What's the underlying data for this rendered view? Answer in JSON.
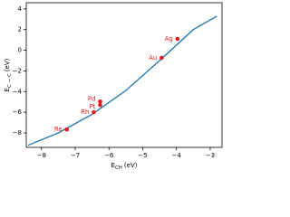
{
  "chart_data": {
    "type": "scatter",
    "xlabel": {
      "main": "E",
      "sub": "CH",
      "unit": "(eV)"
    },
    "ylabel": {
      "main": "E",
      "sub": "C − C",
      "unit": "(eV)"
    },
    "xlim": [
      -8.45,
      -2.65
    ],
    "xticks": [
      {
        "value": -8,
        "label": "−8"
      },
      {
        "value": -7,
        "label": "−7"
      },
      {
        "value": -6,
        "label": "−6"
      },
      {
        "value": -5,
        "label": "−5"
      },
      {
        "value": -4,
        "label": "−4"
      },
      {
        "value": -3,
        "label": "−3"
      }
    ],
    "ylim": [
      -9.4,
      4.6
    ],
    "yticks": [
      {
        "value": -8,
        "label": "−8"
      },
      {
        "value": -6,
        "label": "−6"
      },
      {
        "value": -4,
        "label": "−4"
      },
      {
        "value": -2,
        "label": "−2"
      },
      0,
      2,
      4
    ],
    "points": {
      "color": "#e31a1c",
      "labels": [
        "Ag",
        "Au",
        "Pd",
        "Pt",
        "Rh",
        "Re"
      ],
      "x": [
        -3.97,
        -4.44,
        -6.26,
        -6.26,
        -6.45,
        -7.25
      ],
      "values": [
        1.1,
        -0.74,
        -4.96,
        -5.3,
        -6.0,
        -7.67
      ]
    },
    "fit": {
      "color": "#1f77b4",
      "x": [
        -8.4,
        -7.5,
        -6.5,
        -5.5,
        -4.5,
        -3.5,
        -2.8
      ],
      "values": [
        -9.2,
        -8.0,
        -6.2,
        -3.9,
        -1.0,
        2.0,
        3.3
      ]
    }
  }
}
